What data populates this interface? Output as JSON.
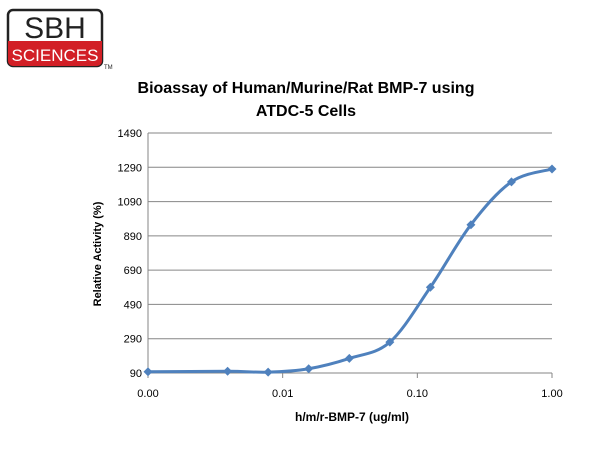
{
  "logo": {
    "top_text": "SBH",
    "bottom_text": "SCIENCES",
    "tm": "TM",
    "border_color": "#222222",
    "band_color": "#d21f26"
  },
  "chart_data": {
    "type": "line",
    "title_lines": [
      "Bioassay of Human/Murine/Rat BMP-7 using",
      "ATDC-5 Cells"
    ],
    "xlabel": "h/m/r-BMP-7 (ug/ml)",
    "ylabel": "Relative Activity (%)",
    "x_scale": "log",
    "x_ticks": [
      {
        "value": 0.001,
        "label": "0.00"
      },
      {
        "value": 0.01,
        "label": "0.01"
      },
      {
        "value": 0.1,
        "label": "0.10"
      },
      {
        "value": 1,
        "label": "1.00"
      }
    ],
    "y_ticks": [
      90,
      290,
      490,
      690,
      890,
      1090,
      1290,
      1490
    ],
    "ylim": [
      90,
      1490
    ],
    "grid": "horizontal",
    "series_color": "#4f81bd",
    "series": [
      {
        "x": [
          0.001,
          0.0039,
          0.0078,
          0.0156,
          0.03125,
          0.0625,
          0.125,
          0.25,
          0.5,
          1.0
        ],
        "values": [
          97,
          100,
          95,
          115,
          175,
          270,
          590,
          955,
          1205,
          1280
        ]
      }
    ]
  }
}
